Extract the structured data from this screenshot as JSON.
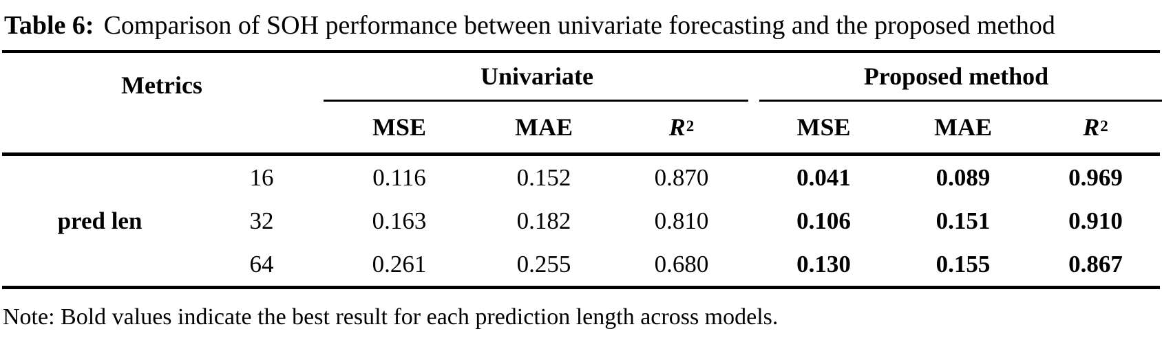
{
  "caption": {
    "label": "Table 6:",
    "text": "Comparison of SOH performance between univariate forecasting and the proposed method"
  },
  "table": {
    "corner_header": "Metrics",
    "group_headers": {
      "univariate": "Univariate",
      "proposed": "Proposed method"
    },
    "sub_headers": [
      {
        "base": "MSE",
        "sup": ""
      },
      {
        "base": "MAE",
        "sup": ""
      },
      {
        "base": "R",
        "sup": "2"
      },
      {
        "base": "MSE",
        "sup": ""
      },
      {
        "base": "MAE",
        "sup": ""
      },
      {
        "base": "R",
        "sup": "2"
      }
    ],
    "row_group_label": "pred len",
    "rows": [
      {
        "pred_len": "16",
        "univariate": [
          "0.116",
          "0.152",
          "0.870"
        ],
        "proposed": [
          "0.041",
          "0.089",
          "0.969"
        ]
      },
      {
        "pred_len": "32",
        "univariate": [
          "0.163",
          "0.182",
          "0.810"
        ],
        "proposed": [
          "0.106",
          "0.151",
          "0.910"
        ]
      },
      {
        "pred_len": "64",
        "univariate": [
          "0.261",
          "0.255",
          "0.680"
        ],
        "proposed": [
          "0.130",
          "0.155",
          "0.867"
        ]
      }
    ]
  },
  "note": "Note: Bold values indicate the best result for each prediction length across models.",
  "colors": {
    "text": "#000000",
    "background": "#ffffff",
    "rule": "#000000"
  }
}
